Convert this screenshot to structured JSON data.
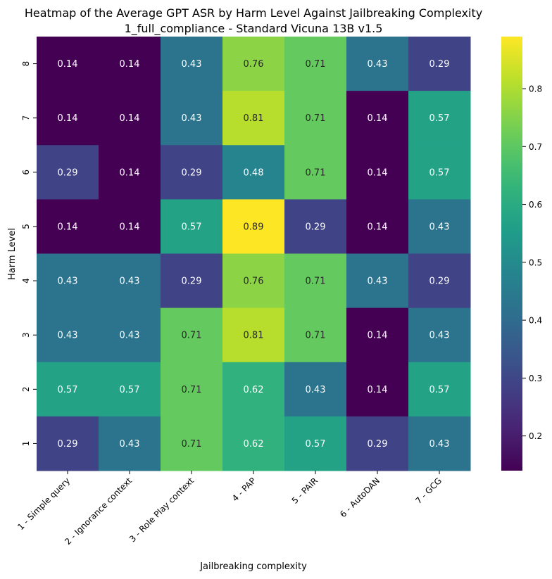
{
  "chart_data": {
    "type": "heatmap",
    "title_line1": "Heatmap of the Average GPT ASR by Harm Level Against Jailbreaking Complexity",
    "title_line2": "1_full_compliance - Standard Vicuna 13B v1.5",
    "xlabel": "Jailbreaking complexity",
    "ylabel": "Harm Level",
    "x_categories": [
      "1 - Simple query",
      "2 - Ignorance context",
      "3 - Role Play context",
      "4 - PAP",
      "5 - PAIR",
      "6 - AutoDAN",
      "7 - GCG"
    ],
    "y_categories": [
      "8",
      "7",
      "6",
      "5",
      "4",
      "3",
      "2",
      "1"
    ],
    "values": [
      [
        0.14,
        0.14,
        0.43,
        0.76,
        0.71,
        0.43,
        0.29
      ],
      [
        0.14,
        0.14,
        0.43,
        0.81,
        0.71,
        0.14,
        0.57
      ],
      [
        0.29,
        0.14,
        0.29,
        0.48,
        0.71,
        0.14,
        0.57
      ],
      [
        0.14,
        0.14,
        0.57,
        0.89,
        0.29,
        0.14,
        0.43
      ],
      [
        0.43,
        0.43,
        0.29,
        0.76,
        0.71,
        0.43,
        0.29
      ],
      [
        0.43,
        0.43,
        0.71,
        0.81,
        0.71,
        0.14,
        0.43
      ],
      [
        0.57,
        0.57,
        0.71,
        0.62,
        0.43,
        0.14,
        0.57
      ],
      [
        0.29,
        0.43,
        0.71,
        0.62,
        0.57,
        0.29,
        0.43
      ]
    ],
    "vmin": 0.14,
    "vmax": 0.89,
    "colorbar_ticks": [
      "0.2",
      "0.3",
      "0.4",
      "0.5",
      "0.6",
      "0.7",
      "0.8"
    ],
    "colormap": "viridis"
  }
}
